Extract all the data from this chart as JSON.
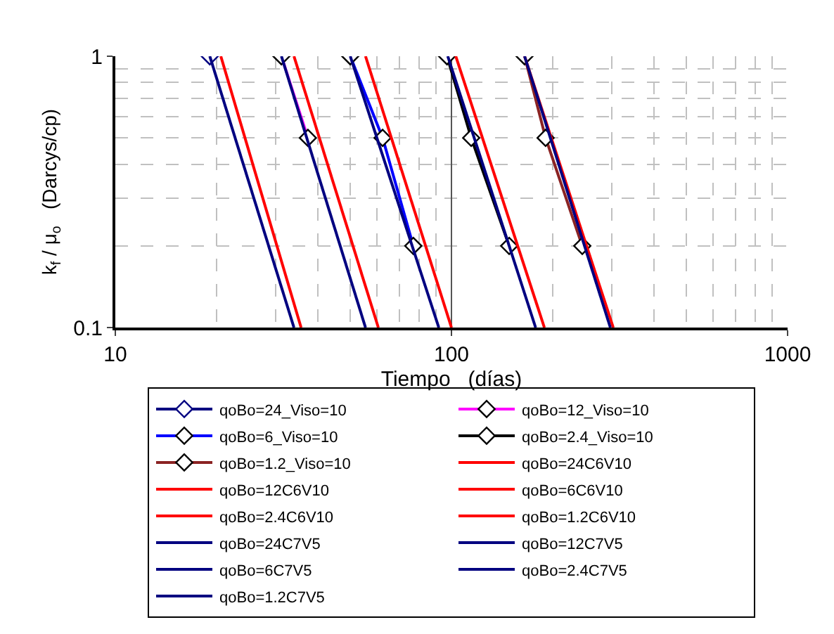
{
  "chart_data": {
    "type": "line",
    "xlabel": "Tiempo   (días)",
    "ylabel": "k$_{f}$ / μ$_{o}$   (Darcys/cp)",
    "log": "xy",
    "xlim": [
      10,
      1000
    ],
    "ylim": [
      0.1,
      1
    ],
    "xticks": [
      10,
      100,
      1000
    ],
    "yticks": [
      0.1,
      1
    ],
    "grid": true,
    "legend": "bottom",
    "line_style": "solid",
    "series": [
      {
        "name": "qoBo=24_Viso=10",
        "color": "#000080",
        "marker": "diamond",
        "x": [
          19.1
        ],
        "values": [
          1
        ]
      },
      {
        "name": "qoBo=12_Viso=10",
        "color": "#ff00ff",
        "marker": "diamond",
        "x": [
          31.2,
          37.4
        ],
        "values": [
          1,
          0.5
        ]
      },
      {
        "name": "qoBo=6_Viso=10",
        "color": "#0000ff",
        "marker": "diamond",
        "x": [
          50,
          62.4,
          77
        ],
        "values": [
          1,
          0.5,
          0.2
        ]
      },
      {
        "name": "qoBo=2.4_Viso=10",
        "color": "#000000",
        "marker": "diamond",
        "x": [
          97,
          114.5,
          148.5
        ],
        "values": [
          1,
          0.5,
          0.2
        ]
      },
      {
        "name": "qoBo=1.2_Viso=10",
        "color": "#8b2323",
        "marker": "diamond",
        "x": [
          165,
          190.6,
          245
        ],
        "values": [
          1,
          0.5,
          0.2
        ]
      },
      {
        "name": "qoBo=24C6V10",
        "color": "#ff0000",
        "marker": "none",
        "x": [
          20.6,
          35.7
        ],
        "values": [
          1,
          0.1
        ]
      },
      {
        "name": "qoBo=12C6V10",
        "color": "#ff0000",
        "marker": "none",
        "x": [
          34,
          60.6
        ],
        "values": [
          1,
          0.1
        ]
      },
      {
        "name": "qoBo=6C6V10",
        "color": "#ff0000",
        "marker": "none",
        "x": [
          55.5,
          100
        ],
        "values": [
          1,
          0.1
        ]
      },
      {
        "name": "qoBo=2.4C6V10",
        "color": "#ff0000",
        "marker": "none",
        "x": [
          103,
          189
        ],
        "values": [
          1,
          0.1
        ]
      },
      {
        "name": "qoBo=1.2C6V10",
        "color": "#ff0000",
        "marker": "none",
        "x": [
          165,
          303
        ],
        "values": [
          1,
          0.1
        ]
      },
      {
        "name": "qoBo=24C7V5",
        "color": "#000080",
        "marker": "none",
        "x": [
          19.1,
          34
        ],
        "values": [
          1,
          0.1
        ]
      },
      {
        "name": "qoBo=12C7V5",
        "color": "#000080",
        "marker": "none",
        "x": [
          31.2,
          55.5
        ],
        "values": [
          1,
          0.1
        ]
      },
      {
        "name": "qoBo=6C7V5",
        "color": "#000080",
        "marker": "none",
        "x": [
          50,
          91.7
        ],
        "values": [
          1,
          0.1
        ]
      },
      {
        "name": "qoBo=2.4C7V5",
        "color": "#000080",
        "marker": "none",
        "x": [
          97.5,
          178
        ],
        "values": [
          1,
          0.1
        ]
      },
      {
        "name": "qoBo=1.2C7V5",
        "color": "#000080",
        "marker": "none",
        "x": [
          165,
          297
        ],
        "values": [
          1,
          0.1
        ]
      }
    ]
  }
}
